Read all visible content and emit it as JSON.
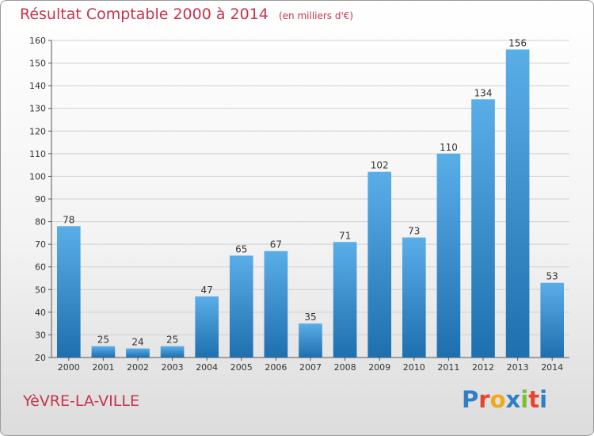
{
  "title": "Résultat Comptable 2000 à 2014",
  "unit_note": "(en milliers d'€)",
  "commune": "YèVRE-LA-VILLE",
  "logo": {
    "text": "Proxiti",
    "letter_colors": [
      "#2e7fc6",
      "#e8452c",
      "#f2a81d",
      "#2e7fc6",
      "#7bbf34",
      "#e8452c",
      "#2e7fc6"
    ]
  },
  "colors": {
    "title": "#c8334d",
    "bar_light": "#5aaee8",
    "bar_dark": "#1e6fae",
    "grid": "#d0d0d0",
    "axis": "#555555"
  },
  "chart_data": {
    "type": "bar",
    "categories": [
      "2000",
      "2001",
      "2002",
      "2003",
      "2004",
      "2005",
      "2006",
      "2007",
      "2008",
      "2009",
      "2010",
      "2011",
      "2012",
      "2013",
      "2014"
    ],
    "values": [
      78,
      25,
      24,
      25,
      47,
      65,
      67,
      35,
      71,
      102,
      73,
      110,
      134,
      156,
      53
    ],
    "ylim": [
      20,
      160
    ],
    "yticks": [
      20,
      30,
      40,
      50,
      60,
      70,
      80,
      90,
      100,
      110,
      120,
      130,
      140,
      150,
      160
    ],
    "grid": true,
    "data_labels": true
  }
}
